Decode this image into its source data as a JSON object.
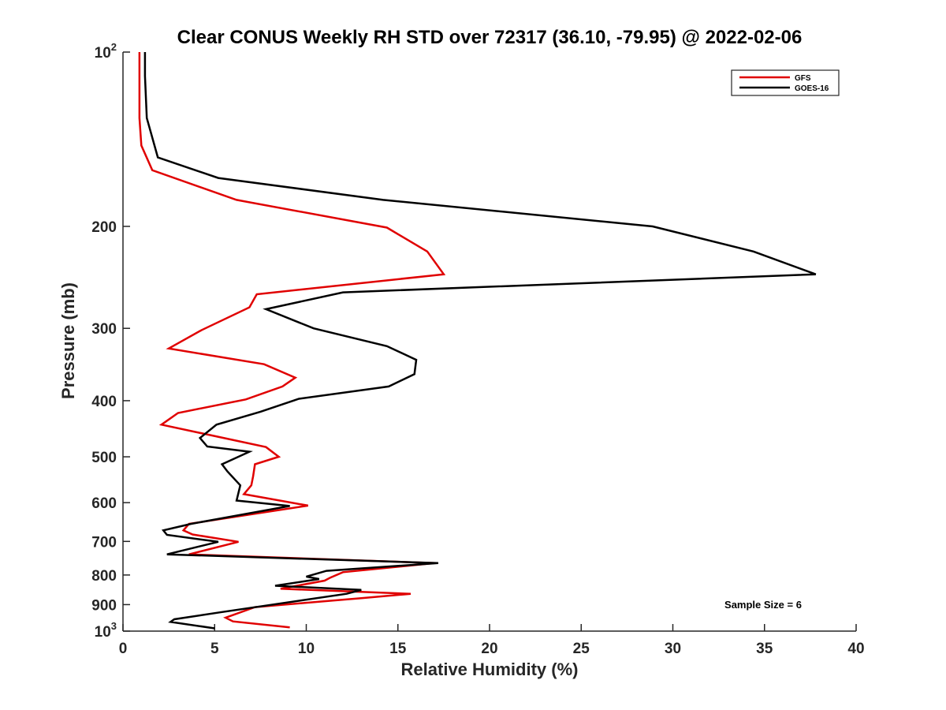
{
  "chart_data": {
    "type": "line",
    "title": "Clear CONUS Weekly RH STD over 72317 (36.10, -79.95) @ 2022-02-06",
    "xlabel": "Relative Humidity (%)",
    "ylabel": "Pressure (mb)",
    "xlim": [
      0,
      40
    ],
    "ylim": [
      100,
      1000
    ],
    "yscale": "log",
    "y_reversed": true,
    "x_ticks": [
      "0",
      "5",
      "10",
      "15",
      "20",
      "25",
      "30",
      "35",
      "40"
    ],
    "y_ticks": [
      {
        "value": 100,
        "base": "10",
        "exp": "2"
      },
      {
        "value": 200,
        "label": "200"
      },
      {
        "value": 300,
        "label": "300"
      },
      {
        "value": 400,
        "label": "400"
      },
      {
        "value": 500,
        "label": "500"
      },
      {
        "value": 600,
        "label": "600"
      },
      {
        "value": 700,
        "label": "700"
      },
      {
        "value": 800,
        "label": "800"
      },
      {
        "value": 900,
        "label": "900"
      },
      {
        "value": 1000,
        "base": "10",
        "exp": "3"
      }
    ],
    "grid": false,
    "legend": {
      "position": "top-right",
      "entries": [
        "GFS",
        "GOES-16"
      ]
    },
    "annotation": "Sample Size = 6",
    "series": [
      {
        "name": "GFS",
        "color": "#e00000",
        "x": [
          0.9,
          0.9,
          0.9,
          1.0,
          1.6,
          6.2,
          14.4,
          16.6,
          17.5,
          7.3,
          6.9,
          4.3,
          2.5,
          7.7,
          9.4,
          8.7,
          6.7,
          3.0,
          2.1,
          7.8,
          8.5,
          7.2,
          7.1,
          7.0,
          6.6,
          10.1,
          3.6,
          3.3,
          3.8,
          6.3,
          3.6,
          17.0,
          12.0,
          11.3,
          11.0,
          8.6,
          15.7,
          13.0,
          7.2,
          5.6,
          6.0,
          9.1
        ],
        "y": [
          100,
          110,
          130,
          145,
          160,
          180,
          201,
          221,
          242,
          262,
          276,
          302,
          325,
          346,
          365,
          378,
          398,
          420,
          440,
          481,
          500,
          515,
          540,
          560,
          580,
          607,
          653,
          670,
          681,
          701,
          737,
          763,
          791,
          809,
          818,
          845,
          862,
          877,
          909,
          948,
          962,
          985
        ]
      },
      {
        "name": "GOES-16",
        "color": "#000000",
        "x": [
          1.2,
          1.2,
          1.3,
          1.9,
          5.2,
          14.2,
          28.9,
          34.4,
          37.8,
          12.0,
          7.8,
          10.4,
          14.4,
          16.0,
          15.9,
          14.5,
          9.6,
          7.5,
          5.1,
          4.2,
          4.6,
          6.9,
          5.4,
          5.7,
          6.4,
          6.2,
          9.1,
          3.7,
          2.2,
          2.4,
          5.2,
          2.4,
          17.2,
          11.1,
          10.0,
          10.7,
          8.3,
          13.0,
          12.2,
          5.3,
          2.8,
          2.6,
          5.0
        ],
        "y": [
          100,
          110,
          130,
          152,
          165,
          180,
          200,
          221,
          242,
          260,
          278,
          300,
          322,
          340,
          360,
          378,
          397,
          418,
          440,
          464,
          480,
          490,
          515,
          530,
          560,
          595,
          608,
          653,
          670,
          682,
          701,
          737,
          763,
          787,
          805,
          813,
          835,
          849,
          862,
          928,
          954,
          964,
          989
        ]
      }
    ]
  }
}
